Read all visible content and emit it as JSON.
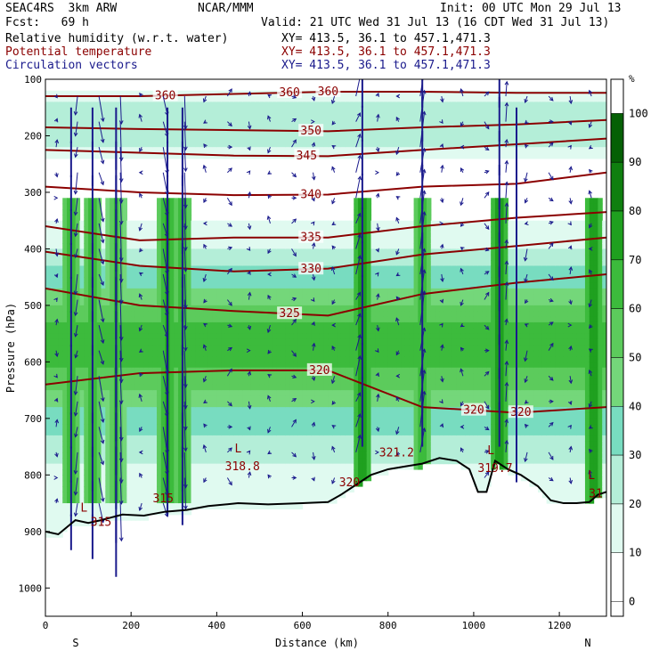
{
  "header": {
    "model": "SEAC4RS  3km ARW",
    "org": "NCAR/MMM",
    "init": "Init: 00 UTC Mon 29 Jul 13",
    "fcst": "Fcst:   69 h",
    "valid": "Valid: 21 UTC Wed 31 Jul 13 (16 CDT Wed 31 Jul 13)",
    "fields": [
      {
        "name": "Relative humidity (w.r.t. water)",
        "xy": "XY= 413.5, 36.1 to 457.1,471.3",
        "color": "#000000"
      },
      {
        "name": "Potential temperature",
        "xy": "XY= 413.5, 36.1 to 457.1,471.3",
        "color": "#8b0000"
      },
      {
        "name": "Circulation vectors",
        "xy": "XY= 413.5, 36.1 to 457.1,471.3",
        "color": "#1a1a8c"
      }
    ]
  },
  "chart_data": {
    "type": "heatmap",
    "xlabel": "Distance (km)",
    "ylabel": "Pressure (hPa)",
    "xlim": [
      0,
      1310
    ],
    "ylim": [
      1050,
      100
    ],
    "x_ticks": [
      0,
      200,
      400,
      600,
      800,
      1000,
      1200
    ],
    "y_ticks": [
      100,
      200,
      300,
      400,
      500,
      600,
      700,
      800,
      900,
      1000
    ],
    "end_labels": {
      "left": "S",
      "right": "N"
    },
    "colorbar": {
      "unit": "%",
      "ticks": [
        0,
        10,
        20,
        30,
        40,
        50,
        60,
        70,
        80,
        90,
        100
      ],
      "levels": [
        {
          "from": 0,
          "to": 20,
          "color": "#ffffff"
        },
        {
          "from": 20,
          "to": 30,
          "color": "#e0faf0"
        },
        {
          "from": 30,
          "to": 40,
          "color": "#b4eed8"
        },
        {
          "from": 40,
          "to": 50,
          "color": "#78dcc0"
        },
        {
          "from": 50,
          "to": 60,
          "color": "#74d77a"
        },
        {
          "from": 60,
          "to": 70,
          "color": "#5ccb5c"
        },
        {
          "from": 70,
          "to": 80,
          "color": "#3cbb3c"
        },
        {
          "from": 80,
          "to": 90,
          "color": "#1fa01f"
        },
        {
          "from": 90,
          "to": 100,
          "color": "#0f7f0f"
        },
        {
          "from": 100,
          "to": 110,
          "color": "#056005"
        }
      ]
    },
    "humidity_profile": [
      {
        "p": 100,
        "rh": 5
      },
      {
        "p": 150,
        "rh": 35
      },
      {
        "p": 200,
        "rh": 40
      },
      {
        "p": 250,
        "rh": 15
      },
      {
        "p": 300,
        "rh": 15
      },
      {
        "p": 350,
        "rh": 20
      },
      {
        "p": 400,
        "rh": 30
      },
      {
        "p": 450,
        "rh": 45
      },
      {
        "p": 500,
        "rh": 60
      },
      {
        "p": 550,
        "rh": 75
      },
      {
        "p": 600,
        "rh": 72
      },
      {
        "p": 650,
        "rh": 60
      },
      {
        "p": 700,
        "rh": 45
      },
      {
        "p": 750,
        "rh": 35
      },
      {
        "p": 800,
        "rh": 25
      },
      {
        "p": 850,
        "rh": 22
      },
      {
        "p": 900,
        "rh": 22
      }
    ],
    "moist_columns": [
      {
        "x": 60,
        "rh": 75
      },
      {
        "x": 110,
        "rh": 75
      },
      {
        "x": 165,
        "rh": 70
      },
      {
        "x": 285,
        "rh": 85
      },
      {
        "x": 320,
        "rh": 75
      },
      {
        "x": 740,
        "rh": 85
      },
      {
        "x": 880,
        "rh": 80
      },
      {
        "x": 1060,
        "rh": 85
      },
      {
        "x": 1280,
        "rh": 85
      }
    ],
    "terrain": [
      {
        "x": 0,
        "p": 900
      },
      {
        "x": 30,
        "p": 905
      },
      {
        "x": 70,
        "p": 880
      },
      {
        "x": 100,
        "p": 885
      },
      {
        "x": 130,
        "p": 880
      },
      {
        "x": 180,
        "p": 870
      },
      {
        "x": 230,
        "p": 872
      },
      {
        "x": 280,
        "p": 865
      },
      {
        "x": 330,
        "p": 862
      },
      {
        "x": 380,
        "p": 855
      },
      {
        "x": 450,
        "p": 850
      },
      {
        "x": 520,
        "p": 852
      },
      {
        "x": 600,
        "p": 850
      },
      {
        "x": 660,
        "p": 848
      },
      {
        "x": 690,
        "p": 835
      },
      {
        "x": 720,
        "p": 820
      },
      {
        "x": 760,
        "p": 800
      },
      {
        "x": 800,
        "p": 790
      },
      {
        "x": 840,
        "p": 785
      },
      {
        "x": 880,
        "p": 780
      },
      {
        "x": 920,
        "p": 770
      },
      {
        "x": 960,
        "p": 775
      },
      {
        "x": 990,
        "p": 790
      },
      {
        "x": 1010,
        "p": 830
      },
      {
        "x": 1030,
        "p": 830
      },
      {
        "x": 1050,
        "p": 775
      },
      {
        "x": 1080,
        "p": 790
      },
      {
        "x": 1110,
        "p": 800
      },
      {
        "x": 1150,
        "p": 820
      },
      {
        "x": 1180,
        "p": 845
      },
      {
        "x": 1210,
        "p": 850
      },
      {
        "x": 1240,
        "p": 850
      },
      {
        "x": 1270,
        "p": 848
      },
      {
        "x": 1290,
        "p": 835
      },
      {
        "x": 1310,
        "p": 830
      }
    ],
    "theta_contours": [
      {
        "value": 360,
        "p": [
          130,
          130,
          126,
          122,
          122,
          124,
          124
        ],
        "labels": [
          {
            "x": 280,
            "text": "360"
          },
          {
            "x": 570,
            "text": "360"
          },
          {
            "x": 660,
            "text": "360"
          }
        ]
      },
      {
        "value": 350,
        "p": [
          185,
          188,
          190,
          192,
          185,
          180,
          172
        ],
        "labels": [
          {
            "x": 620,
            "text": "350"
          }
        ]
      },
      {
        "value": 345,
        "p": [
          225,
          230,
          235,
          236,
          225,
          215,
          205
        ],
        "labels": [
          {
            "x": 610,
            "text": "345"
          }
        ]
      },
      {
        "value": 340,
        "p": [
          290,
          300,
          305,
          304,
          290,
          285,
          265
        ],
        "labels": [
          {
            "x": 620,
            "text": "340"
          }
        ]
      },
      {
        "value": 335,
        "p": [
          360,
          385,
          380,
          380,
          360,
          345,
          335
        ],
        "labels": [
          {
            "x": 620,
            "text": "335"
          }
        ]
      },
      {
        "value": 330,
        "p": [
          405,
          430,
          440,
          435,
          410,
          395,
          380
        ],
        "labels": [
          {
            "x": 620,
            "text": "330"
          }
        ]
      },
      {
        "value": 325,
        "p": [
          470,
          500,
          510,
          518,
          480,
          460,
          445
        ],
        "labels": [
          {
            "x": 570,
            "text": "325"
          }
        ]
      },
      {
        "value": 320,
        "p": [
          640,
          620,
          615,
          615,
          680,
          690,
          680
        ],
        "labels": [
          {
            "x": 640,
            "text": "320"
          },
          {
            "x": 1000,
            "text": "320"
          },
          {
            "x": 1110,
            "text": "320"
          }
        ]
      }
    ],
    "theta_x": [
      0,
      220,
      440,
      660,
      880,
      1100,
      1310
    ],
    "annotations": [
      {
        "x": 90,
        "p": 865,
        "text": "L"
      },
      {
        "x": 130,
        "p": 890,
        "text": "315"
      },
      {
        "x": 275,
        "p": 848,
        "text": "315"
      },
      {
        "x": 450,
        "p": 760,
        "text": "L"
      },
      {
        "x": 460,
        "p": 792,
        "text": "318.8"
      },
      {
        "x": 710,
        "p": 820,
        "text": "320"
      },
      {
        "x": 820,
        "p": 767,
        "text": "321.2"
      },
      {
        "x": 1040,
        "p": 763,
        "text": "L"
      },
      {
        "x": 1050,
        "p": 795,
        "text": "319.7"
      },
      {
        "x": 1275,
        "p": 807,
        "text": "L"
      },
      {
        "x": 1285,
        "p": 840,
        "text": "31"
      }
    ],
    "vector_columns": [
      {
        "x": 60,
        "w": -8
      },
      {
        "x": 110,
        "w": -10
      },
      {
        "x": 165,
        "w": -14
      },
      {
        "x": 285,
        "w": -8
      },
      {
        "x": 320,
        "w": -10
      },
      {
        "x": 740,
        "w": 8
      },
      {
        "x": 880,
        "w": 10
      },
      {
        "x": 1060,
        "w": 10
      },
      {
        "x": 1100,
        "w": -8
      }
    ]
  }
}
